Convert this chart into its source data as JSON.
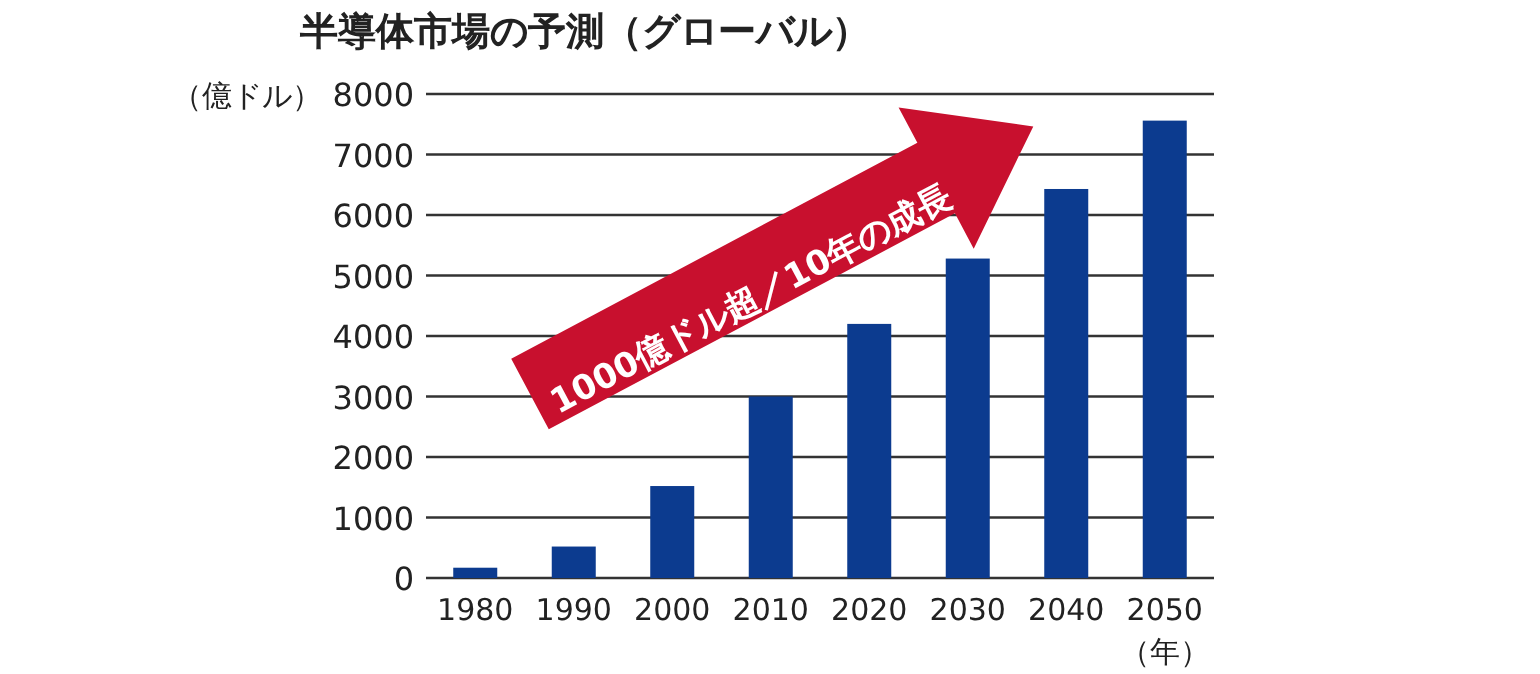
{
  "chart_data": {
    "type": "bar",
    "title": "半導体市場の予測（グローバル）",
    "ylabel": "（億ドル）",
    "xlabel": "（年）",
    "categories": [
      "1980",
      "1990",
      "2000",
      "2010",
      "2020",
      "2030",
      "2040",
      "2050"
    ],
    "values": [
      170,
      520,
      1520,
      3000,
      4200,
      5280,
      6430,
      7560
    ],
    "color": "#0c3b8f",
    "ylim": [
      0,
      8000
    ],
    "yticks": [
      0,
      1000,
      2000,
      3000,
      4000,
      5000,
      6000,
      7000,
      8000
    ],
    "grid": "y",
    "annotations": [
      "1000億ドル超／10年の成長"
    ]
  }
}
